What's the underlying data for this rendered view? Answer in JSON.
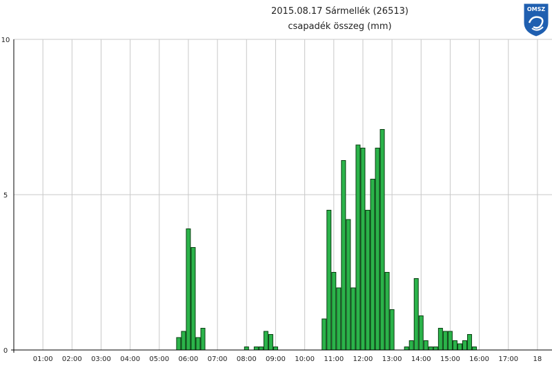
{
  "title": {
    "line1": "2015.08.17 Sármellék (26513)",
    "line2": "csapadék összeg (mm)"
  },
  "logo": {
    "text": "OMSZ"
  },
  "colors": {
    "bar_fill": "#2bb34a",
    "bar_stroke": "#0a3f12",
    "grid": "#c8c8c8",
    "axis": "#000000",
    "logo_blue": "#1f5fb0"
  },
  "chart_data": {
    "type": "bar",
    "title": "2015.08.17 Sármellék (26513)",
    "subtitle": "csapadék összeg (mm)",
    "xlabel": "",
    "ylabel": "",
    "ylim": [
      0,
      10
    ],
    "yticks": [
      0,
      5,
      10
    ],
    "xlim": [
      0,
      18.5
    ],
    "xticks": [
      "01:00",
      "02:00",
      "03:00",
      "04:00",
      "05:00",
      "06:00",
      "07:00",
      "08:00",
      "09:00",
      "10:00",
      "11:00",
      "12:00",
      "13:00",
      "14:00",
      "15:00",
      "16:00",
      "17:00",
      "18"
    ],
    "grid": true,
    "legend": "none",
    "series": [
      {
        "x": [
          "05:40",
          "05:50",
          "06:00",
          "06:10",
          "06:20",
          "06:30",
          "08:00",
          "08:20",
          "08:30",
          "08:40",
          "08:50",
          "09:00",
          "10:40",
          "10:50",
          "11:00",
          "11:10",
          "11:20",
          "11:30",
          "11:40",
          "11:50",
          "12:00",
          "12:10",
          "12:20",
          "12:30",
          "12:40",
          "12:50",
          "13:00",
          "13:10",
          "13:30",
          "13:40",
          "13:50",
          "14:00",
          "14:10",
          "14:20",
          "14:30",
          "14:40",
          "14:50",
          "15:00",
          "15:10",
          "15:20",
          "15:30",
          "15:40",
          "15:50"
        ],
        "values": [
          0.4,
          0.6,
          3.9,
          3.3,
          0.4,
          0.7,
          0.1,
          0.1,
          0.1,
          0.6,
          0.5,
          0.1,
          1.0,
          4.5,
          2.5,
          2.0,
          6.1,
          4.2,
          2.0,
          6.6,
          6.5,
          4.5,
          5.5,
          6.5,
          7.1,
          2.5,
          1.3,
          0.0,
          0.1,
          0.3,
          2.3,
          1.1,
          0.3,
          0.1,
          0.1,
          0.7,
          0.6,
          0.6,
          0.3,
          0.2,
          0.3,
          0.5,
          0.1
        ]
      }
    ]
  }
}
